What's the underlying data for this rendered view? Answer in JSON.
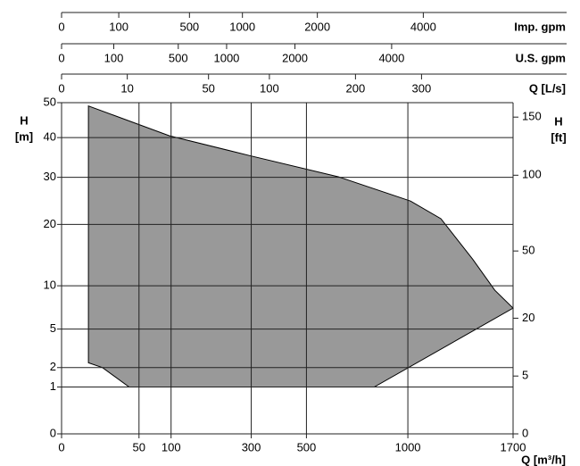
{
  "chart_data": {
    "type": "area",
    "scale": "sqrt",
    "grid": true,
    "color": "#999999",
    "xlabel": "Q [m³/h]",
    "ylabel": [
      "H",
      "[m]"
    ],
    "y2label": [
      "H",
      "[ft]"
    ],
    "x": [
      6,
      97,
      295,
      640,
      1015,
      1200,
      1410,
      1565,
      1700,
      815,
      38,
      14,
      6
    ],
    "values": [
      49,
      40.5,
      35.3,
      30.1,
      24.7,
      21.1,
      13.9,
      9.4,
      7.2,
      1,
      1,
      2,
      2.3
    ],
    "xlim": [
      0,
      1700
    ],
    "xticks": [
      0,
      50,
      100,
      300,
      500,
      1000,
      1700
    ],
    "ylim": [
      0,
      50
    ],
    "yticks": [
      0,
      1,
      2,
      5,
      10,
      20,
      30,
      40,
      50
    ],
    "y2lim": [
      0,
      164
    ],
    "y2ticks": [
      0,
      5,
      20,
      50,
      100,
      150
    ],
    "top_axes": [
      {
        "label": "Imp. gpm",
        "lim": [
          0,
          6232
        ],
        "ticks": [
          0,
          100,
          500,
          1000,
          2000,
          4000
        ]
      },
      {
        "label": "U.S. gpm",
        "lim": [
          0,
          7485
        ],
        "ticks": [
          0,
          100,
          500,
          1000,
          2000,
          4000
        ]
      },
      {
        "label": "Q [L/s]",
        "lim": [
          0,
          472
        ],
        "ticks": [
          0,
          10,
          50,
          100,
          200,
          300
        ]
      }
    ]
  }
}
